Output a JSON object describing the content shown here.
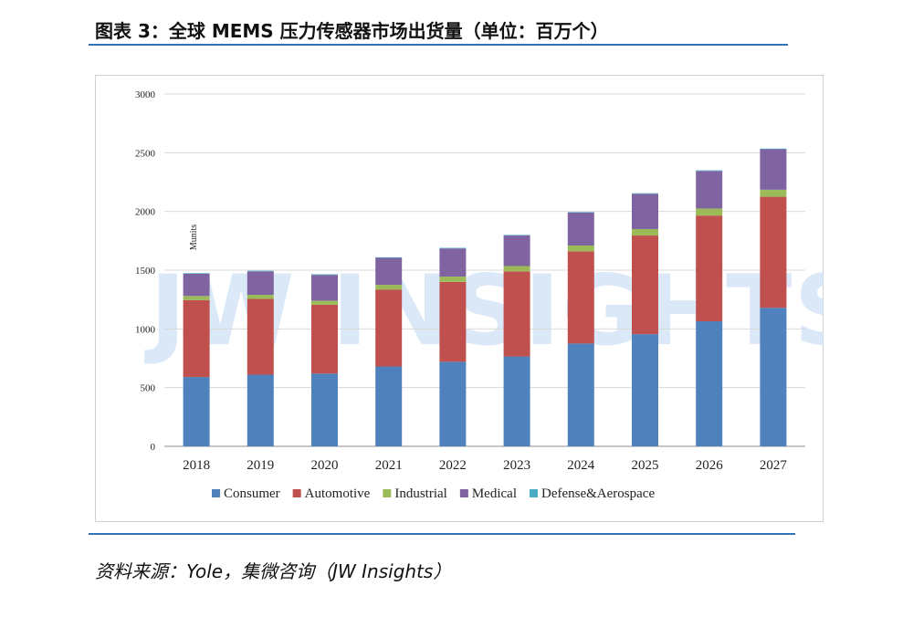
{
  "header": {
    "title": "图表 3：全球 MEMS 压力传感器市场出货量（单位：百万个）"
  },
  "footer": {
    "source": "资料来源：Yole，集微咨询（JW Insights）"
  },
  "watermark": {
    "text": "JW INSIGHTS"
  },
  "chart_data": {
    "type": "bar",
    "stacked": true,
    "categories": [
      "2018",
      "2019",
      "2020",
      "2021",
      "2022",
      "2023",
      "2024",
      "2025",
      "2026",
      "2027"
    ],
    "ylabel": "Munits",
    "ylim": [
      0,
      3000
    ],
    "yticks": [
      "0",
      "500",
      "1000",
      "1500",
      "2000",
      "2500",
      "3000"
    ],
    "grid": true,
    "legend_position": "bottom",
    "series": [
      {
        "name": "Consumer",
        "color": "#4f81bd",
        "values": [
          590,
          610,
          620,
          680,
          720,
          765,
          875,
          955,
          1065,
          1180
        ]
      },
      {
        "name": "Automotive",
        "color": "#c0504d",
        "values": [
          655,
          645,
          585,
          655,
          680,
          725,
          785,
          840,
          900,
          945
        ]
      },
      {
        "name": "Industrial",
        "color": "#9bbb59",
        "values": [
          35,
          35,
          35,
          40,
          45,
          45,
          50,
          55,
          60,
          60
        ]
      },
      {
        "name": "Medical",
        "color": "#8064a2",
        "values": [
          190,
          200,
          220,
          230,
          240,
          260,
          280,
          300,
          320,
          345
        ]
      },
      {
        "name": "Defense&Aerospace",
        "color": "#4bacc6",
        "values": [
          5,
          5,
          5,
          5,
          5,
          5,
          5,
          5,
          5,
          5
        ]
      }
    ]
  }
}
